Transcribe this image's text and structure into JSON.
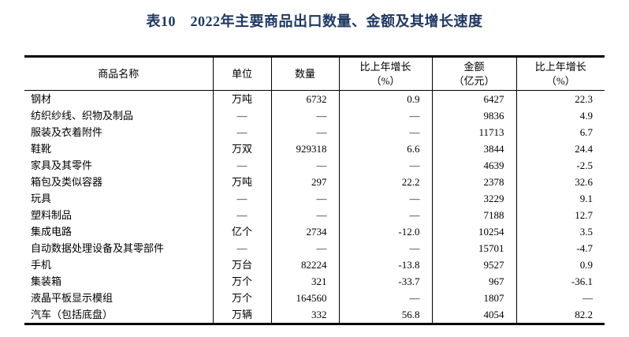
{
  "title": "表10　2022年主要商品出口数量、金额及其增长速度",
  "table": {
    "headers": {
      "name": "商品名称",
      "unit": "单位",
      "quantity": "数量",
      "quantity_growth_line1": "比上年增长",
      "quantity_growth_line2": "（%）",
      "amount_line1": "金额",
      "amount_line2": "（亿元）",
      "amount_growth_line1": "比上年增长",
      "amount_growth_line2": "（%）"
    },
    "rows": [
      [
        "钢材",
        "万吨",
        "6732",
        "0.9",
        "6427",
        "22.3"
      ],
      [
        "纺织纱线、织物及制品",
        "—",
        "—",
        "—",
        "9836",
        "4.9"
      ],
      [
        "服装及衣着附件",
        "—",
        "—",
        "—",
        "11713",
        "6.7"
      ],
      [
        "鞋靴",
        "万双",
        "929318",
        "6.6",
        "3844",
        "24.4"
      ],
      [
        "家具及其零件",
        "—",
        "—",
        "—",
        "4639",
        "-2.5"
      ],
      [
        "箱包及类似容器",
        "万吨",
        "297",
        "22.2",
        "2378",
        "32.6"
      ],
      [
        "玩具",
        "—",
        "—",
        "—",
        "3229",
        "9.1"
      ],
      [
        "塑料制品",
        "—",
        "—",
        "—",
        "7188",
        "12.7"
      ],
      [
        "集成电路",
        "亿个",
        "2734",
        "-12.0",
        "10254",
        "3.5"
      ],
      [
        "自动数据处理设备及其零部件",
        "—",
        "—",
        "—",
        "15701",
        "-4.7"
      ],
      [
        "手机",
        "万台",
        "82224",
        "-13.8",
        "9527",
        "0.9"
      ],
      [
        "集装箱",
        "万个",
        "321",
        "-33.7",
        "967",
        "-36.1"
      ],
      [
        "液晶平板显示模组",
        "万个",
        "164560",
        "—",
        "1807",
        "—"
      ],
      [
        "汽车（包括底盘）",
        "万辆",
        "332",
        "56.8",
        "4054",
        "82.2"
      ]
    ]
  },
  "colors": {
    "title_text": "#1f3864",
    "table_border": "#000000",
    "body_text": "#000000",
    "background": "#ffffff"
  }
}
